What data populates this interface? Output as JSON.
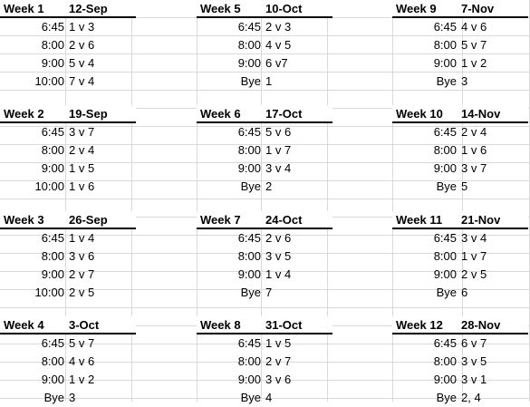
{
  "weeks": [
    {
      "week": "Week 1",
      "date": "12-Sep",
      "rows": [
        [
          "6:45",
          "1 v 3"
        ],
        [
          "8:00",
          "2 v 6"
        ],
        [
          "9:00",
          "5 v 4"
        ],
        [
          "10:00",
          "7 v 4"
        ]
      ]
    },
    {
      "week": "Week 2",
      "date": "19-Sep",
      "rows": [
        [
          "6:45",
          "3 v 7"
        ],
        [
          "8:00",
          "2 v 4"
        ],
        [
          "9:00",
          "1 v 5"
        ],
        [
          "10:00",
          "1 v 6"
        ]
      ]
    },
    {
      "week": "Week 3",
      "date": "26-Sep",
      "rows": [
        [
          "6:45",
          "1 v 4"
        ],
        [
          "8:00",
          "3 v 6"
        ],
        [
          "9:00",
          "2 v 7"
        ],
        [
          "10:00",
          "2 v 5"
        ]
      ]
    },
    {
      "week": "Week 4",
      "date": "3-Oct",
      "rows": [
        [
          "6:45",
          "5 v 7"
        ],
        [
          "8:00",
          "4 v 6"
        ],
        [
          "9:00",
          "1 v 2"
        ],
        [
          "Bye",
          "3"
        ]
      ]
    },
    {
      "week": "Week 5",
      "date": "10-Oct",
      "rows": [
        [
          "6:45",
          "2 v 3"
        ],
        [
          "8:00",
          "4 v 5"
        ],
        [
          "9:00",
          "6 v7"
        ],
        [
          "Bye",
          "1"
        ]
      ]
    },
    {
      "week": "Week 6",
      "date": "17-Oct",
      "rows": [
        [
          "6:45",
          "5 v 6"
        ],
        [
          "8:00",
          "1 v 7"
        ],
        [
          "9:00",
          "3 v 4"
        ],
        [
          "Bye",
          "2"
        ]
      ]
    },
    {
      "week": "Week 7",
      "date": "24-Oct",
      "rows": [
        [
          "6:45",
          "2 v 6"
        ],
        [
          "8:00",
          "3 v 5"
        ],
        [
          "9:00",
          "1 v 4"
        ],
        [
          "Bye",
          "7"
        ]
      ]
    },
    {
      "week": "Week 8",
      "date": "31-Oct",
      "rows": [
        [
          "6:45",
          "1 v 5"
        ],
        [
          "8:00",
          "2 v 7"
        ],
        [
          "9:00",
          "3 v 6"
        ],
        [
          "Bye",
          "4"
        ]
      ]
    },
    {
      "week": "Week 9",
      "date": "7-Nov",
      "rows": [
        [
          "6:45",
          "4 v 6"
        ],
        [
          "8:00",
          "5 v 7"
        ],
        [
          "9:00",
          "1 v 2"
        ],
        [
          "Bye",
          "3"
        ]
      ]
    },
    {
      "week": "Week 10",
      "date": "14-Nov",
      "rows": [
        [
          "6:45",
          "2 v 4"
        ],
        [
          "8:00",
          "1 v 6"
        ],
        [
          "9:00",
          "3 v 7"
        ],
        [
          "Bye",
          "5"
        ]
      ]
    },
    {
      "week": "Week 11",
      "date": "21-Nov",
      "rows": [
        [
          "6:45",
          "3 v 4"
        ],
        [
          "8:00",
          "1 v 7"
        ],
        [
          "9:00",
          "2 v 5"
        ],
        [
          "Bye",
          "6"
        ]
      ]
    },
    {
      "week": "Week 12",
      "date": "28-Nov",
      "rows": [
        [
          "6:45",
          "6 v 7"
        ],
        [
          "8:00",
          "3 v 5"
        ],
        [
          "9:00",
          "3 v 1"
        ],
        [
          "Bye",
          "2, 4"
        ]
      ]
    }
  ]
}
